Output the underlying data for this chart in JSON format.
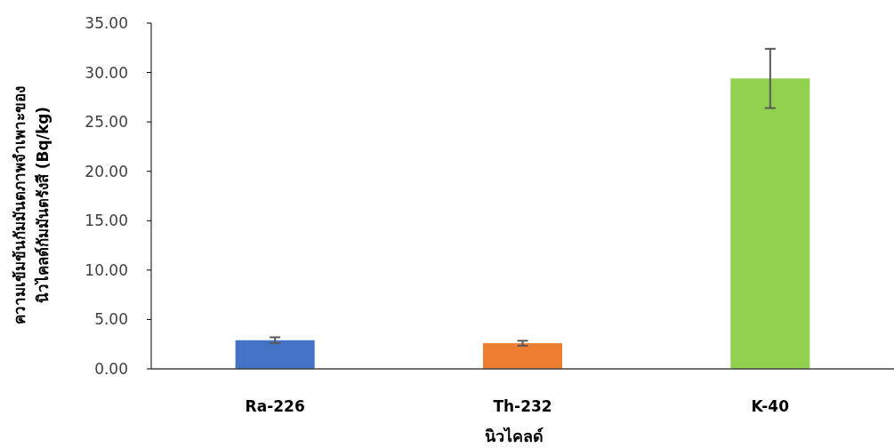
{
  "chart_data": {
    "type": "bar",
    "xlabel": "นิวไคลด์",
    "ylabel": "ความเข้มข้นกัมมันตภาพจำเพาะของ\nนิวไคลด์กัมมันตรังสี (Bq/kg)",
    "categories": [
      "Ra-226",
      "Th-232",
      "K-40"
    ],
    "values": [
      2.9,
      2.6,
      29.4
    ],
    "colors": [
      "#4472c4",
      "#ed7d31",
      "#92d050"
    ],
    "errors": [
      0.3,
      0.25,
      3.0
    ],
    "ylim": [
      0,
      35
    ],
    "yticks": [
      {
        "value": 0,
        "label": "0.00"
      },
      {
        "value": 5,
        "label": "5.00"
      },
      {
        "value": 10,
        "label": "10.00"
      },
      {
        "value": 15,
        "label": "15.00"
      },
      {
        "value": 20,
        "label": "20.00"
      },
      {
        "value": 25,
        "label": "25.00"
      },
      {
        "value": 30,
        "label": "30.00"
      },
      {
        "value": 35,
        "label": "35.00"
      }
    ],
    "grid": false
  }
}
